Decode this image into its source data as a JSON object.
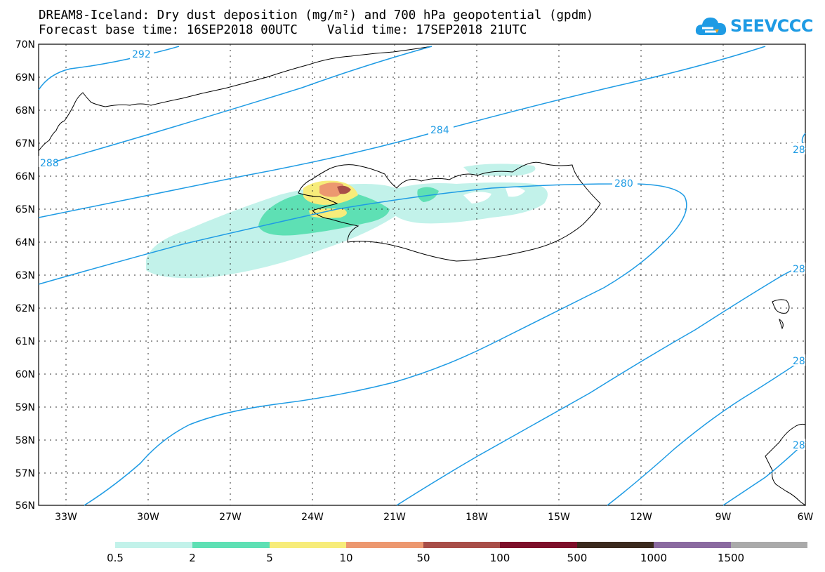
{
  "header": {
    "title_line1": "DREAM8-Iceland: Dry dust deposition (mg/m²) and 700 hPa geopotential (gpdm)",
    "title_line2": "Forecast base time: 16SEP2018 00UTC    Valid time: 17SEP2018 21UTC"
  },
  "logo": {
    "text": "SEEVCCC",
    "icon": "cloud-logo-icon"
  },
  "map": {
    "lat_labels": [
      "70N",
      "69N",
      "68N",
      "67N",
      "66N",
      "65N",
      "64N",
      "63N",
      "62N",
      "61N",
      "60N",
      "59N",
      "58N",
      "57N",
      "56N"
    ],
    "lon_labels": [
      "33W",
      "30W",
      "27W",
      "24W",
      "21W",
      "18W",
      "15W",
      "12W",
      "9W",
      "6W"
    ],
    "contour_labels": [
      "292",
      "288",
      "284",
      "280",
      "28",
      "28",
      "28",
      "28"
    ],
    "contour_color": "#1e9be4",
    "gridlines": "dotted"
  },
  "colorbar": {
    "labels": [
      "0.5",
      "2",
      "5",
      "10",
      "50",
      "100",
      "500",
      "1000",
      "1500"
    ],
    "colors": [
      "#c2f2ea",
      "#5ee0b4",
      "#f7ec7a",
      "#ec9870",
      "#a84e48",
      "#7d0f2a",
      "#3b2a1e",
      "#8a6aa0",
      "#aaaaaa"
    ]
  }
}
